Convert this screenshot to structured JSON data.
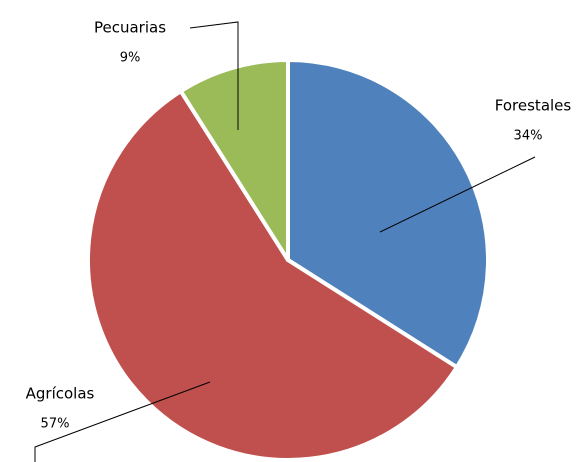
{
  "chart_data": {
    "type": "pie",
    "categories": [
      "Forestales",
      "Agrícolas",
      "Pecuarias"
    ],
    "values": [
      34,
      57,
      9
    ],
    "value_labels": [
      "34%",
      "57%",
      "9%"
    ],
    "colors": [
      "#4f81bd",
      "#c0504d",
      "#9bbb59"
    ]
  }
}
